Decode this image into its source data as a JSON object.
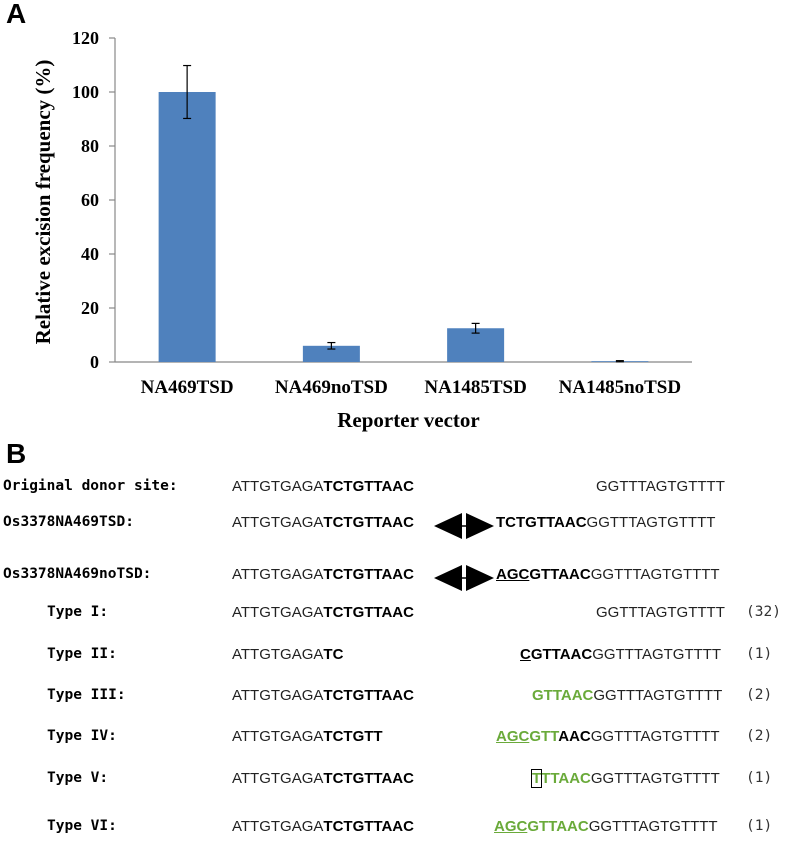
{
  "panel_a": {
    "letter": "A",
    "chart_data": {
      "type": "bar",
      "categories": [
        "NA469TSD",
        "NA469noTSD",
        "NA1485TSD",
        "NA1485noTSD"
      ],
      "values": [
        100,
        6,
        12.5,
        0.3
      ],
      "errors": [
        9.8,
        1.2,
        1.8,
        0.2
      ],
      "yticks": [
        "0",
        "20",
        "40",
        "60",
        "80",
        "100",
        "120"
      ],
      "ylim": [
        0,
        120
      ],
      "xlabel": "Reporter vector",
      "ylabel": "Relative excision frequency (%)",
      "title": "",
      "bar_color": "#4f81bd",
      "grid": false
    }
  },
  "panel_b": {
    "letter": "B",
    "rows": [
      {
        "label": "Original donor site:",
        "left_plain": "ATTGTGAGA",
        "left_bold": "TCTGTTAAC",
        "right": [
          {
            "t": "GGTTTAGTGTTTT",
            "c": ""
          }
        ],
        "count": ""
      },
      {
        "label": "Os3378NA469TSD:",
        "left_plain": "ATTGTGAGA",
        "left_bold": "TCTGTTAAC",
        "arrows": true,
        "right": [
          {
            "t": "TCTGTTAAC",
            "c": "b"
          },
          {
            "t": "GGTTTAGTGTTTT",
            "c": ""
          }
        ],
        "count": ""
      },
      {
        "label": "Os3378NA469noTSD:",
        "left_plain": "ATTGTGAGA",
        "left_bold": "TCTGTTAAC",
        "arrows": true,
        "right": [
          {
            "t": "AGC",
            "c": "b u"
          },
          {
            "t": "GTTAAC",
            "c": "b"
          },
          {
            "t": "GGTTTAGTGTTTT",
            "c": ""
          }
        ],
        "count": ""
      },
      {
        "label": "Type I:",
        "left_plain": "ATTGTGAGA",
        "left_bold": "TCTGTTAAC",
        "right": [
          {
            "t": "GGTTTAGTGTTTT",
            "c": ""
          }
        ],
        "count": "(32)"
      },
      {
        "label": "Type II:",
        "left_plain": "ATTGTGAGA",
        "left_bold": "TC",
        "right": [
          {
            "t": "C",
            "c": "b u"
          },
          {
            "t": "GTTAAC",
            "c": "b"
          },
          {
            "t": "GGTTTAGTGTTTT",
            "c": ""
          }
        ],
        "count": "(1)"
      },
      {
        "label": "Type III:",
        "left_plain": "ATTGTGAGA",
        "left_bold": "TCTGTTAAC",
        "right": [
          {
            "t": "GTTAAC",
            "c": "g"
          },
          {
            "t": "GGTTTAGTGTTTT",
            "c": ""
          }
        ],
        "count": "(2)"
      },
      {
        "label": "Type IV:",
        "left_plain": "ATTGTGAGA",
        "left_bold": "TCTGTT",
        "right": [
          {
            "t": "AGC",
            "c": "g u"
          },
          {
            "t": "GTT",
            "c": "g"
          },
          {
            "t": "AAC",
            "c": "b"
          },
          {
            "t": "GGTTTAGTGTTTT",
            "c": ""
          }
        ],
        "count": "(2)"
      },
      {
        "label": "Type V:",
        "left_plain": "ATTGTGAGA",
        "left_bold": "TCTGTTAAC",
        "right": [
          {
            "t": "T",
            "c": "g boxed"
          },
          {
            "t": "TTAAC",
            "c": "g"
          },
          {
            "t": "GGTTTAGTGTTTT",
            "c": ""
          }
        ],
        "count": "(1)"
      },
      {
        "label": "Type VI:",
        "left_plain": "ATTGTGAGA",
        "left_bold": "TCTGTTAAC",
        "right": [
          {
            "t": "AGC",
            "c": "g u"
          },
          {
            "t": "GTTAAC",
            "c": "g"
          },
          {
            "t": "GGTTTAGTGTTTT",
            "c": ""
          }
        ],
        "count": "(1)"
      }
    ]
  }
}
